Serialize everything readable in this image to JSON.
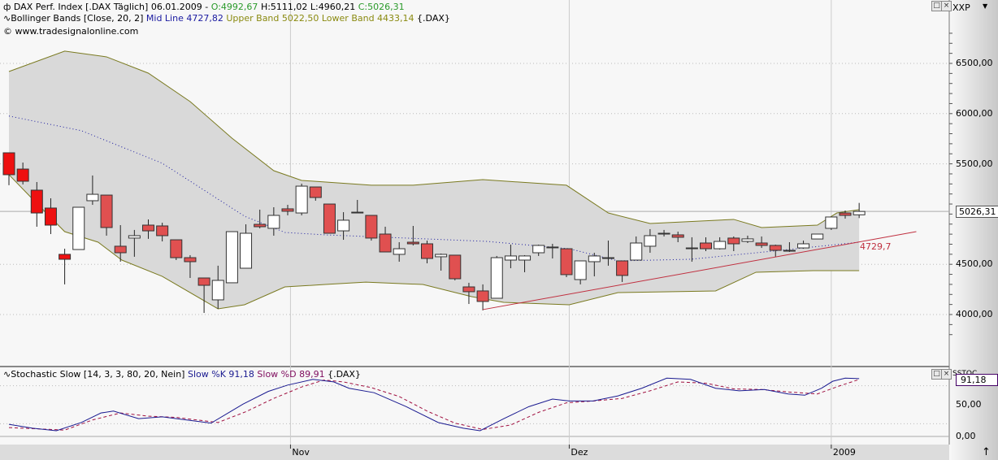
{
  "header": {
    "icon": "candlestick-icon",
    "symbol": "DAX Perf. Index [.DAX  Täglich] 06.01.2009 -",
    "open": "O:4992,67",
    "high": "H:5111,02 L:4960,21",
    "close": "C:5026,31",
    "bb_name": "Bollinger Bands [Close, 20, 2]",
    "bb_mid": "Mid Line 4727,82",
    "bb_bands": "Upper Band 5022,50 Lower Band 4433,14",
    "bb_sym": "{.DAX}",
    "copyright": "© www.tradesignalonline.com"
  },
  "stoch_header": {
    "name": "Stochastic Slow [14, 3, 3, 80, 20, Nein]",
    "k": "Slow %K 91,18",
    "d": "Slow %D 89,91",
    "sym": "{.DAX}"
  },
  "axis": {
    "main_label": "XXP",
    "stoch_label": "SSTOC",
    "price_ticks": [
      "6500,00",
      "6000,00",
      "5500,00",
      "4500,00",
      "4000,00"
    ],
    "last_price": "5026,31",
    "stoch_ticks": [
      "50,00",
      "0,00"
    ],
    "last_stoch": "91,18",
    "trend_label": "4729,7",
    "months": [
      "Nov",
      "Dez",
      "2009"
    ]
  },
  "colors": {
    "up": "#ffffff",
    "down": "#e05050",
    "band_fill": "#d9d9d9",
    "band_line": "#7a7a20",
    "mid_line": "#1a1aa0",
    "trend": "#c03040",
    "k_line": "#1a1a90",
    "d_line": "#a01040"
  },
  "chart_data": {
    "type": "candlestick",
    "ylim": [
      3900,
      6700
    ],
    "price_tick_values": [
      6500,
      6000,
      5500,
      4500,
      4000
    ],
    "month_index": [
      20.2,
      40.2,
      59.0
    ],
    "candles": [
      [
        5610,
        5610,
        5287,
        5392
      ],
      [
        5448,
        5513,
        5295,
        5327
      ],
      [
        5238,
        5319,
        4874,
        5011
      ],
      [
        5060,
        5157,
        4801,
        4890
      ],
      [
        4599,
        4655,
        4300,
        4550
      ],
      [
        4647,
        5068,
        4647,
        5068
      ],
      [
        5133,
        5384,
        5092,
        5197
      ],
      [
        5189,
        5189,
        4785,
        4866
      ],
      [
        4680,
        4890,
        4526,
        4615
      ],
      [
        4761,
        4842,
        4575,
        4785
      ],
      [
        4890,
        4947,
        4753,
        4833
      ],
      [
        4882,
        4914,
        4728,
        4785
      ],
      [
        4744,
        4744,
        4542,
        4566
      ],
      [
        4566,
        4591,
        4364,
        4526
      ],
      [
        4364,
        4364,
        4016,
        4291
      ],
      [
        4146,
        4486,
        4057,
        4340
      ],
      [
        4316,
        4825,
        4316,
        4825
      ],
      [
        4461,
        4898,
        4461,
        4809
      ],
      [
        4898,
        5044,
        4858,
        4874
      ],
      [
        4858,
        5068,
        4785,
        4987
      ],
      [
        5052,
        5092,
        4987,
        5028
      ],
      [
        5011,
        5303,
        4987,
        5278
      ],
      [
        5270,
        5270,
        5133,
        5165
      ],
      [
        5100,
        5100,
        4809,
        4809
      ],
      [
        4833,
        5019,
        4744,
        4939
      ],
      [
        5019,
        5141,
        5011,
        5011
      ],
      [
        4987,
        4987,
        4736,
        4761
      ],
      [
        4801,
        4874,
        4623,
        4623
      ],
      [
        4599,
        4720,
        4526,
        4655
      ],
      [
        4720,
        4882,
        4688,
        4704
      ],
      [
        4704,
        4736,
        4510,
        4558
      ],
      [
        4575,
        4607,
        4437,
        4599
      ],
      [
        4591,
        4591,
        4340,
        4356
      ],
      [
        4275,
        4316,
        4105,
        4227
      ],
      [
        4235,
        4300,
        4041,
        4130
      ],
      [
        4162,
        4583,
        4162,
        4566
      ],
      [
        4542,
        4696,
        4461,
        4583
      ],
      [
        4542,
        4591,
        4421,
        4583
      ],
      [
        4615,
        4696,
        4583,
        4688
      ],
      [
        4672,
        4704,
        4558,
        4672
      ],
      [
        4655,
        4655,
        4372,
        4397
      ],
      [
        4348,
        4534,
        4300,
        4534
      ],
      [
        4526,
        4615,
        4380,
        4583
      ],
      [
        4566,
        4736,
        4486,
        4566
      ],
      [
        4534,
        4534,
        4324,
        4389
      ],
      [
        4542,
        4777,
        4542,
        4712
      ],
      [
        4680,
        4850,
        4615,
        4785
      ],
      [
        4809,
        4842,
        4777,
        4809
      ],
      [
        4793,
        4825,
        4720,
        4769
      ],
      [
        4663,
        4769,
        4526,
        4663
      ],
      [
        4712,
        4769,
        4631,
        4655
      ],
      [
        4655,
        4769,
        4647,
        4728
      ],
      [
        4761,
        4777,
        4631,
        4704
      ],
      [
        4728,
        4785,
        4712,
        4753
      ],
      [
        4712,
        4777,
        4663,
        4688
      ],
      [
        4688,
        4696,
        4575,
        4639
      ],
      [
        4639,
        4720,
        4623,
        4639
      ],
      [
        4663,
        4736,
        4655,
        4704
      ],
      [
        4752,
        4801,
        4752,
        4801
      ],
      [
        4858,
        4971,
        4842,
        4971
      ],
      [
        5011,
        5036,
        4955,
        4987
      ],
      [
        4992.67,
        5111.02,
        4960.21,
        5026.31
      ]
    ],
    "upper": [
      [
        0,
        6419
      ],
      [
        4,
        6622
      ],
      [
        7,
        6565
      ],
      [
        10,
        6403
      ],
      [
        13,
        6120
      ],
      [
        16,
        5756
      ],
      [
        19,
        5432
      ],
      [
        21,
        5335
      ],
      [
        26,
        5287
      ],
      [
        29,
        5287
      ],
      [
        34,
        5343
      ],
      [
        40,
        5287
      ],
      [
        43,
        5011
      ],
      [
        46,
        4906
      ],
      [
        52,
        4947
      ],
      [
        54,
        4866
      ],
      [
        58,
        4890
      ],
      [
        59.4,
        5011
      ],
      [
        61,
        5044
      ]
    ],
    "lower": [
      [
        0,
        5392
      ],
      [
        1.7,
        5149
      ],
      [
        4,
        4825
      ],
      [
        6.4,
        4720
      ],
      [
        8.1,
        4542
      ],
      [
        11,
        4380
      ],
      [
        15,
        4057
      ],
      [
        16.9,
        4097
      ],
      [
        19.8,
        4275
      ],
      [
        22.7,
        4299
      ],
      [
        25.6,
        4323
      ],
      [
        29.7,
        4299
      ],
      [
        33.2,
        4178
      ],
      [
        35.5,
        4121
      ],
      [
        40.2,
        4097
      ],
      [
        43.7,
        4218
      ],
      [
        50.7,
        4235
      ],
      [
        53.6,
        4421
      ],
      [
        57.7,
        4437
      ],
      [
        61,
        4437
      ]
    ],
    "mid": [
      [
        0,
        5976
      ],
      [
        5.2,
        5830
      ],
      [
        11,
        5506
      ],
      [
        16.9,
        4979
      ],
      [
        19.8,
        4817
      ],
      [
        22.7,
        4793
      ],
      [
        28.5,
        4761
      ],
      [
        34.3,
        4728
      ],
      [
        40.2,
        4655
      ],
      [
        43.7,
        4534
      ],
      [
        48.9,
        4550
      ],
      [
        54.8,
        4631
      ],
      [
        61,
        4720
      ]
    ],
    "trendline": [
      [
        34,
        4049
      ],
      [
        65.1,
        4825
      ]
    ],
    "stoch": {
      "ylim": [
        0,
        100
      ],
      "k": [
        [
          0,
          19
        ],
        [
          1.7,
          13
        ],
        [
          3.4,
          9
        ],
        [
          5.2,
          22
        ],
        [
          6.6,
          37
        ],
        [
          7.5,
          40
        ],
        [
          9.3,
          28
        ],
        [
          11,
          31
        ],
        [
          14.5,
          21
        ],
        [
          16.8,
          51
        ],
        [
          18.6,
          71
        ],
        [
          20,
          81
        ],
        [
          21.8,
          90
        ],
        [
          23.3,
          86
        ],
        [
          24.4,
          76
        ],
        [
          26.2,
          69
        ],
        [
          28.5,
          47
        ],
        [
          30.8,
          22
        ],
        [
          32.6,
          13
        ],
        [
          33.8,
          9
        ],
        [
          35.5,
          28
        ],
        [
          37.3,
          47
        ],
        [
          39,
          59
        ],
        [
          40.2,
          56
        ],
        [
          41.9,
          56
        ],
        [
          43.7,
          64
        ],
        [
          45.4,
          76
        ],
        [
          47.2,
          92
        ],
        [
          48.9,
          90
        ],
        [
          50.7,
          76
        ],
        [
          52.4,
          72
        ],
        [
          54.2,
          74
        ],
        [
          55.9,
          67
        ],
        [
          57.1,
          65
        ],
        [
          58.3,
          76
        ],
        [
          59.1,
          87
        ],
        [
          60,
          92
        ],
        [
          61,
          91.18
        ]
      ],
      "d": [
        [
          0,
          14
        ],
        [
          2,
          12
        ],
        [
          4,
          10
        ],
        [
          6,
          26
        ],
        [
          8,
          37
        ],
        [
          10,
          32
        ],
        [
          12,
          30
        ],
        [
          15,
          22
        ],
        [
          17,
          39
        ],
        [
          19,
          60
        ],
        [
          21,
          78
        ],
        [
          22.6,
          89
        ],
        [
          24,
          86
        ],
        [
          26,
          77
        ],
        [
          28,
          63
        ],
        [
          30,
          40
        ],
        [
          32,
          21
        ],
        [
          34,
          11
        ],
        [
          36,
          18
        ],
        [
          38,
          38
        ],
        [
          40,
          53
        ],
        [
          42,
          56
        ],
        [
          44,
          60
        ],
        [
          46,
          72
        ],
        [
          48,
          86
        ],
        [
          50,
          84
        ],
        [
          52,
          75
        ],
        [
          54,
          74
        ],
        [
          56,
          70
        ],
        [
          58,
          67
        ],
        [
          59.5,
          79
        ],
        [
          61,
          89.91
        ]
      ]
    }
  }
}
